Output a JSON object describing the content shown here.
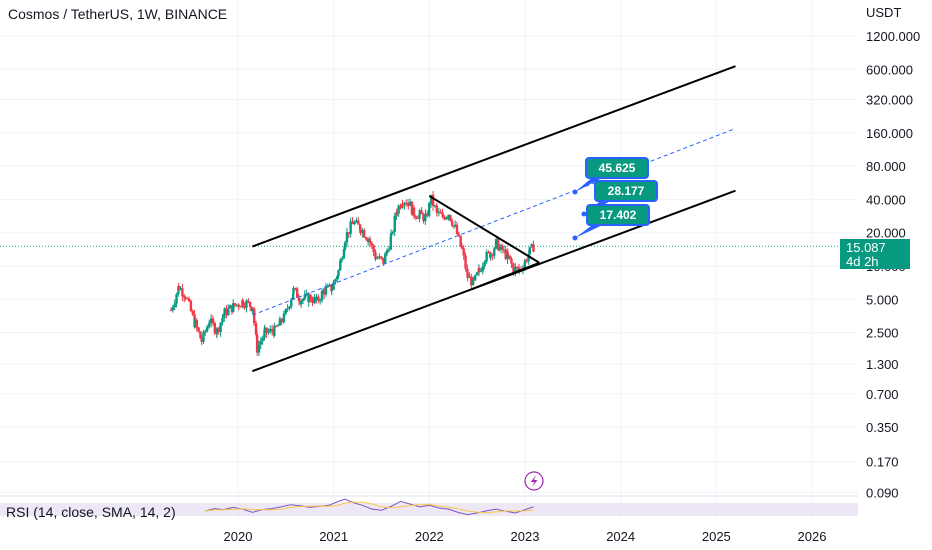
{
  "header": {
    "title": "Cosmos / TetherUS, 1W, BINANCE",
    "currency": "USDT"
  },
  "price_badge": {
    "price": "15.087",
    "countdown": "4d 2h"
  },
  "rsi": {
    "label": "RSI (14, close, SMA, 14, 2)"
  },
  "colors": {
    "up": "#089981",
    "down": "#f23645",
    "channel": "#000000",
    "midline": "#2962ff",
    "label_bg": "#089981",
    "label_border": "#2962ff",
    "rsi_line": "#7e57c2",
    "rsi_sma": "#f7c948",
    "rsi_band": "#ede7f6"
  },
  "chart_data": {
    "type": "candlestick",
    "title": "Cosmos / TetherUS, 1W, BINANCE",
    "y_scale": "log",
    "y_ticks": [
      "1200.000",
      "600.000",
      "320.000",
      "160.000",
      "80.000",
      "40.000",
      "20.000",
      "10.000",
      "5.000",
      "2.500",
      "1.300",
      "0.700",
      "0.350",
      "0.170",
      "0.090"
    ],
    "x_ticks": [
      "2020",
      "2021",
      "2022",
      "2023",
      "2024",
      "2025",
      "2026"
    ],
    "last_price": 15.087,
    "series": [
      {
        "kind": "price",
        "points": [
          {
            "t": 2019.3,
            "v": 4.0
          },
          {
            "t": 2019.38,
            "v": 6.5
          },
          {
            "t": 2019.45,
            "v": 5.5
          },
          {
            "t": 2019.55,
            "v": 3.0
          },
          {
            "t": 2019.62,
            "v": 2.1
          },
          {
            "t": 2019.7,
            "v": 3.2
          },
          {
            "t": 2019.78,
            "v": 2.6
          },
          {
            "t": 2019.86,
            "v": 3.8
          },
          {
            "t": 2019.95,
            "v": 4.3
          },
          {
            "t": 2020.05,
            "v": 4.8
          },
          {
            "t": 2020.15,
            "v": 4.3
          },
          {
            "t": 2020.2,
            "v": 1.8
          },
          {
            "t": 2020.28,
            "v": 2.5
          },
          {
            "t": 2020.38,
            "v": 2.6
          },
          {
            "t": 2020.48,
            "v": 3.4
          },
          {
            "t": 2020.58,
            "v": 6.0
          },
          {
            "t": 2020.66,
            "v": 5.0
          },
          {
            "t": 2020.74,
            "v": 5.2
          },
          {
            "t": 2020.82,
            "v": 4.8
          },
          {
            "t": 2020.9,
            "v": 6.0
          },
          {
            "t": 2020.98,
            "v": 6.3
          },
          {
            "t": 2021.05,
            "v": 9.0
          },
          {
            "t": 2021.12,
            "v": 18.0
          },
          {
            "t": 2021.2,
            "v": 25.0
          },
          {
            "t": 2021.28,
            "v": 22.0
          },
          {
            "t": 2021.36,
            "v": 18.0
          },
          {
            "t": 2021.44,
            "v": 12.0
          },
          {
            "t": 2021.52,
            "v": 11.0
          },
          {
            "t": 2021.6,
            "v": 18.0
          },
          {
            "t": 2021.66,
            "v": 32.0
          },
          {
            "t": 2021.72,
            "v": 40.0
          },
          {
            "t": 2021.78,
            "v": 38.0
          },
          {
            "t": 2021.84,
            "v": 30.0
          },
          {
            "t": 2021.9,
            "v": 29.0
          },
          {
            "t": 2021.96,
            "v": 27.0
          },
          {
            "t": 2022.02,
            "v": 40.0
          },
          {
            "t": 2022.08,
            "v": 30.0
          },
          {
            "t": 2022.14,
            "v": 28.0
          },
          {
            "t": 2022.2,
            "v": 30.0
          },
          {
            "t": 2022.27,
            "v": 22.0
          },
          {
            "t": 2022.34,
            "v": 14.0
          },
          {
            "t": 2022.4,
            "v": 8.0
          },
          {
            "t": 2022.46,
            "v": 7.0
          },
          {
            "t": 2022.52,
            "v": 9.0
          },
          {
            "t": 2022.58,
            "v": 12.0
          },
          {
            "t": 2022.64,
            "v": 13.0
          },
          {
            "t": 2022.7,
            "v": 16.0
          },
          {
            "t": 2022.76,
            "v": 14.0
          },
          {
            "t": 2022.82,
            "v": 12.0
          },
          {
            "t": 2022.88,
            "v": 9.5
          },
          {
            "t": 2022.94,
            "v": 9.2
          },
          {
            "t": 2023.0,
            "v": 11.0
          },
          {
            "t": 2023.05,
            "v": 13.5
          },
          {
            "t": 2023.09,
            "v": 15.087
          }
        ]
      }
    ],
    "annotations": {
      "targets": [
        "45.625",
        "28.177",
        "17.402"
      ],
      "channel_upper": [
        {
          "t": 2020.15,
          "v": 15.0
        },
        {
          "t": 2025.2,
          "v": 640.0
        }
      ],
      "channel_lower": [
        {
          "t": 2020.15,
          "v": 1.12
        },
        {
          "t": 2025.2,
          "v": 48.0
        }
      ],
      "channel_mid": [
        {
          "t": 2020.15,
          "v": 3.6
        },
        {
          "t": 2025.2,
          "v": 175.0
        }
      ],
      "wedge_top": [
        {
          "t": 2022.0,
          "v": 43.0
        },
        {
          "t": 2023.15,
          "v": 10.7
        }
      ],
      "wedge_bottom": [
        {
          "t": 2022.45,
          "v": 6.2
        },
        {
          "t": 2023.15,
          "v": 10.7
        }
      ]
    },
    "rsi": {
      "series_name": "RSI (14, close, SMA, 14, 2)",
      "points": [
        {
          "t": 2019.65,
          "v": 44
        },
        {
          "t": 2019.75,
          "v": 49
        },
        {
          "t": 2019.85,
          "v": 47
        },
        {
          "t": 2019.95,
          "v": 51
        },
        {
          "t": 2020.05,
          "v": 48
        },
        {
          "t": 2020.15,
          "v": 42
        },
        {
          "t": 2020.25,
          "v": 47
        },
        {
          "t": 2020.35,
          "v": 49
        },
        {
          "t": 2020.45,
          "v": 52
        },
        {
          "t": 2020.55,
          "v": 56
        },
        {
          "t": 2020.65,
          "v": 54
        },
        {
          "t": 2020.75,
          "v": 51
        },
        {
          "t": 2020.85,
          "v": 53
        },
        {
          "t": 2020.95,
          "v": 55
        },
        {
          "t": 2021.05,
          "v": 62
        },
        {
          "t": 2021.12,
          "v": 66
        },
        {
          "t": 2021.2,
          "v": 60
        },
        {
          "t": 2021.3,
          "v": 55
        },
        {
          "t": 2021.4,
          "v": 48
        },
        {
          "t": 2021.5,
          "v": 46
        },
        {
          "t": 2021.6,
          "v": 53
        },
        {
          "t": 2021.7,
          "v": 62
        },
        {
          "t": 2021.8,
          "v": 57
        },
        {
          "t": 2021.9,
          "v": 52
        },
        {
          "t": 2022.0,
          "v": 55
        },
        {
          "t": 2022.1,
          "v": 50
        },
        {
          "t": 2022.2,
          "v": 48
        },
        {
          "t": 2022.3,
          "v": 42
        },
        {
          "t": 2022.4,
          "v": 38
        },
        {
          "t": 2022.5,
          "v": 41
        },
        {
          "t": 2022.6,
          "v": 45
        },
        {
          "t": 2022.7,
          "v": 48
        },
        {
          "t": 2022.8,
          "v": 44
        },
        {
          "t": 2022.9,
          "v": 41
        },
        {
          "t": 2023.0,
          "v": 47
        },
        {
          "t": 2023.09,
          "v": 52
        }
      ]
    }
  }
}
